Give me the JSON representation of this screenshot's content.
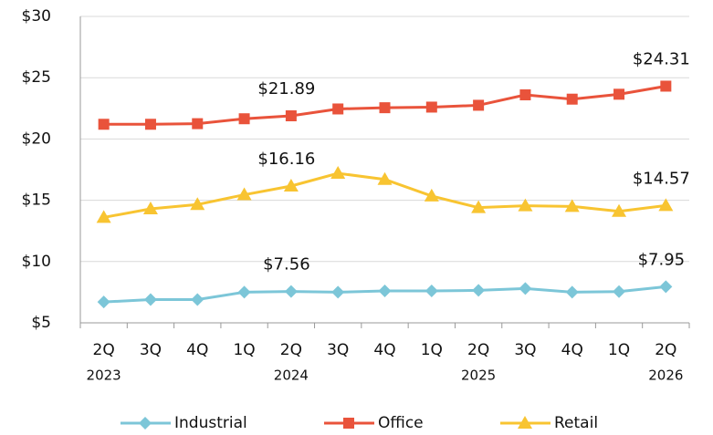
{
  "chart_data": {
    "type": "line",
    "categories": [
      "2Q",
      "3Q",
      "4Q",
      "1Q",
      "2Q",
      "3Q",
      "4Q",
      "1Q",
      "2Q",
      "3Q",
      "4Q",
      "1Q",
      "2Q"
    ],
    "year_labels": [
      "2023",
      null,
      null,
      null,
      "2024",
      null,
      null,
      null,
      "2025",
      null,
      null,
      null,
      "2026"
    ],
    "series": [
      {
        "name": "Industrial",
        "color": "#7cc6d8",
        "marker": "diamond",
        "values": [
          6.7,
          6.9,
          6.9,
          7.5,
          7.56,
          7.5,
          7.6,
          7.6,
          7.65,
          7.8,
          7.5,
          7.55,
          7.95
        ],
        "value_labels": [
          null,
          null,
          null,
          null,
          "$7.56",
          null,
          null,
          null,
          null,
          null,
          null,
          null,
          "$7.95"
        ]
      },
      {
        "name": "Office",
        "color": "#e9533b",
        "marker": "square",
        "values": [
          21.2,
          21.2,
          21.25,
          21.65,
          21.89,
          22.45,
          22.55,
          22.6,
          22.75,
          23.6,
          23.25,
          23.65,
          24.31
        ],
        "value_labels": [
          null,
          null,
          null,
          null,
          "$21.89",
          null,
          null,
          null,
          null,
          null,
          null,
          null,
          "$24.31"
        ]
      },
      {
        "name": "Retail",
        "color": "#f8c431",
        "marker": "triangle",
        "values": [
          13.6,
          14.3,
          14.65,
          15.45,
          16.16,
          17.2,
          16.7,
          15.35,
          14.4,
          14.55,
          14.5,
          14.1,
          14.57
        ],
        "value_labels": [
          null,
          null,
          null,
          null,
          "$16.16",
          null,
          null,
          null,
          null,
          null,
          null,
          null,
          "$14.57"
        ]
      }
    ],
    "ylim": [
      5,
      30
    ],
    "yticks": [
      {
        "value": 5,
        "label": "$5"
      },
      {
        "value": 10,
        "label": "$10"
      },
      {
        "value": 15,
        "label": "$15"
      },
      {
        "value": 20,
        "label": "$20"
      },
      {
        "value": 25,
        "label": "$25"
      },
      {
        "value": 30,
        "label": "$30"
      }
    ],
    "grid": true,
    "legend": "bottom"
  }
}
